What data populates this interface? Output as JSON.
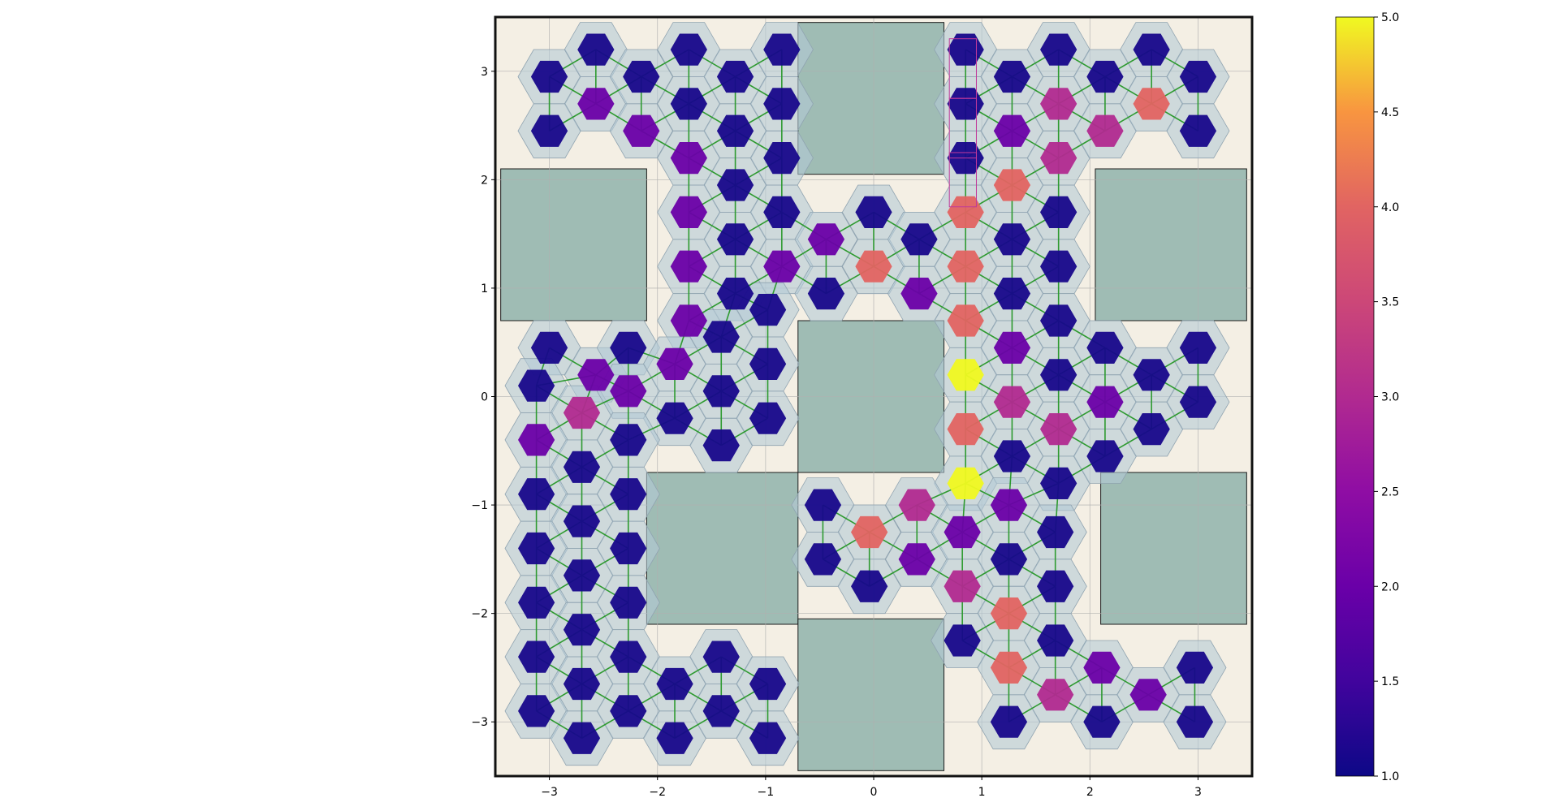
{
  "chart_data": {
    "type": "heatmap",
    "title": "",
    "xlabel": "",
    "ylabel": "",
    "xlim": [
      -3.5,
      3.5
    ],
    "ylim": [
      -3.5,
      3.5
    ],
    "grid": true,
    "x_ticks": [
      {
        "value": -3,
        "label": "−3"
      },
      {
        "value": -2,
        "label": "−2"
      },
      {
        "value": -1,
        "label": "−1"
      },
      {
        "value": 0,
        "label": "0"
      },
      {
        "value": 1,
        "label": "1"
      },
      {
        "value": 2,
        "label": "2"
      },
      {
        "value": 3,
        "label": "3"
      }
    ],
    "y_ticks": [
      {
        "value": 3,
        "label": "3"
      },
      {
        "value": 2,
        "label": "2"
      },
      {
        "value": 1,
        "label": "1"
      },
      {
        "value": 0,
        "label": "0"
      },
      {
        "value": -1,
        "label": "−1"
      },
      {
        "value": -2,
        "label": "−2"
      },
      {
        "value": -3,
        "label": "−3"
      }
    ],
    "colorbar": {
      "colormap": "plasma",
      "range": [
        1.0,
        5.0
      ],
      "ticks": [
        {
          "value": 1.0,
          "label": "1.0"
        },
        {
          "value": 1.5,
          "label": "1.5"
        },
        {
          "value": 2.0,
          "label": "2.0"
        },
        {
          "value": 2.5,
          "label": "2.5"
        },
        {
          "value": 3.0,
          "label": "3.0"
        },
        {
          "value": 3.5,
          "label": "3.5"
        },
        {
          "value": 4.0,
          "label": "4.0"
        },
        {
          "value": 4.5,
          "label": "4.5"
        },
        {
          "value": 5.0,
          "label": "5.0"
        }
      ]
    },
    "colors": {
      "blocked_region": "#9fbcb4",
      "background_region": "#f4efe4",
      "halo": "#b4c9d6",
      "edge": "#2e9a30",
      "highlight": "#c0399a"
    },
    "blocked_regions": [
      {
        "x": [
          -0.7,
          0.65
        ],
        "y": [
          2.05,
          3.45
        ]
      },
      {
        "x": [
          -3.45,
          -2.1
        ],
        "y": [
          0.7,
          2.1
        ]
      },
      {
        "x": [
          2.05,
          3.45
        ],
        "y": [
          0.7,
          2.1
        ]
      },
      {
        "x": [
          -0.7,
          0.65
        ],
        "y": [
          -0.7,
          0.7
        ]
      },
      {
        "x": [
          -2.1,
          -0.7
        ],
        "y": [
          -2.1,
          -0.7
        ]
      },
      {
        "x": [
          2.1,
          3.45
        ],
        "y": [
          -2.1,
          -0.7
        ]
      },
      {
        "x": [
          -0.7,
          0.65
        ],
        "y": [
          -3.45,
          -2.05
        ]
      }
    ],
    "highlight_rects": [
      {
        "x": [
          0.7,
          0.95
        ],
        "y": [
          2.75,
          3.3
        ]
      },
      {
        "x": [
          0.7,
          0.95
        ],
        "y": [
          2.2,
          2.75
        ]
      },
      {
        "x": [
          0.7,
          0.95
        ],
        "y": [
          1.75,
          2.25
        ]
      }
    ],
    "nodes": [
      {
        "x": -3.0,
        "y": 2.95,
        "v": 1.1
      },
      {
        "x": -2.57,
        "y": 3.2,
        "v": 1.1
      },
      {
        "x": -2.57,
        "y": 2.7,
        "v": 2.0
      },
      {
        "x": -3.0,
        "y": 2.45,
        "v": 1.1
      },
      {
        "x": -2.15,
        "y": 2.95,
        "v": 1.1
      },
      {
        "x": -2.15,
        "y": 2.45,
        "v": 2.0
      },
      {
        "x": -1.71,
        "y": 3.2,
        "v": 1.1
      },
      {
        "x": -1.71,
        "y": 2.7,
        "v": 1.1
      },
      {
        "x": -1.71,
        "y": 2.2,
        "v": 2.0
      },
      {
        "x": -1.28,
        "y": 2.95,
        "v": 1.1
      },
      {
        "x": -1.28,
        "y": 2.45,
        "v": 1.1
      },
      {
        "x": -1.28,
        "y": 1.95,
        "v": 1.1
      },
      {
        "x": -0.85,
        "y": 3.2,
        "v": 1.1
      },
      {
        "x": -0.85,
        "y": 2.7,
        "v": 1.1
      },
      {
        "x": -0.85,
        "y": 2.2,
        "v": 1.1
      },
      {
        "x": -1.71,
        "y": 1.7,
        "v": 2.0
      },
      {
        "x": -1.71,
        "y": 1.2,
        "v": 2.0
      },
      {
        "x": -1.71,
        "y": 0.7,
        "v": 2.0
      },
      {
        "x": -1.28,
        "y": 1.45,
        "v": 1.1
      },
      {
        "x": -1.28,
        "y": 0.95,
        "v": 1.1
      },
      {
        "x": -0.85,
        "y": 1.7,
        "v": 1.1
      },
      {
        "x": -0.85,
        "y": 1.2,
        "v": 2.0
      },
      {
        "x": -0.98,
        "y": 0.8,
        "v": 1.1
      },
      {
        "x": -0.44,
        "y": 1.45,
        "v": 2.0
      },
      {
        "x": -0.44,
        "y": 0.95,
        "v": 1.1
      },
      {
        "x": 0.0,
        "y": 1.7,
        "v": 1.1
      },
      {
        "x": 0.0,
        "y": 1.2,
        "v": 4.0
      },
      {
        "x": 0.42,
        "y": 1.45,
        "v": 1.1
      },
      {
        "x": 0.42,
        "y": 0.95,
        "v": 2.0
      },
      {
        "x": 0.85,
        "y": 3.2,
        "v": 1.1
      },
      {
        "x": 0.85,
        "y": 2.7,
        "v": 1.1
      },
      {
        "x": 0.85,
        "y": 2.2,
        "v": 1.1
      },
      {
        "x": 0.85,
        "y": 1.7,
        "v": 4.0
      },
      {
        "x": 0.85,
        "y": 1.2,
        "v": 4.0
      },
      {
        "x": 0.85,
        "y": 0.7,
        "v": 4.0
      },
      {
        "x": 0.85,
        "y": 0.2,
        "v": 5.0
      },
      {
        "x": 0.85,
        "y": -0.3,
        "v": 4.0
      },
      {
        "x": 0.85,
        "y": -0.8,
        "v": 5.0
      },
      {
        "x": 1.28,
        "y": 2.95,
        "v": 1.1
      },
      {
        "x": 1.28,
        "y": 2.45,
        "v": 2.0
      },
      {
        "x": 1.28,
        "y": 1.95,
        "v": 4.0
      },
      {
        "x": 1.28,
        "y": 1.45,
        "v": 1.1
      },
      {
        "x": 1.28,
        "y": 0.95,
        "v": 1.1
      },
      {
        "x": 1.28,
        "y": 0.45,
        "v": 2.0
      },
      {
        "x": 1.28,
        "y": -0.05,
        "v": 3.0
      },
      {
        "x": 1.28,
        "y": -0.55,
        "v": 1.1
      },
      {
        "x": 1.71,
        "y": 3.2,
        "v": 1.1
      },
      {
        "x": 1.71,
        "y": 2.7,
        "v": 3.0
      },
      {
        "x": 1.71,
        "y": 2.2,
        "v": 3.0
      },
      {
        "x": 1.71,
        "y": 1.7,
        "v": 1.1
      },
      {
        "x": 1.71,
        "y": 1.2,
        "v": 1.1
      },
      {
        "x": 1.71,
        "y": 0.7,
        "v": 1.1
      },
      {
        "x": 1.71,
        "y": 0.2,
        "v": 1.1
      },
      {
        "x": 1.71,
        "y": -0.3,
        "v": 3.0
      },
      {
        "x": 1.71,
        "y": -0.8,
        "v": 1.1
      },
      {
        "x": 2.14,
        "y": 2.95,
        "v": 1.1
      },
      {
        "x": 2.14,
        "y": 2.45,
        "v": 3.0
      },
      {
        "x": 2.14,
        "y": 0.45,
        "v": 1.1
      },
      {
        "x": 2.14,
        "y": -0.05,
        "v": 2.0
      },
      {
        "x": 2.14,
        "y": -0.55,
        "v": 1.1
      },
      {
        "x": 2.57,
        "y": 3.2,
        "v": 1.1
      },
      {
        "x": 2.57,
        "y": 2.7,
        "v": 4.0
      },
      {
        "x": 2.57,
        "y": 0.2,
        "v": 1.1
      },
      {
        "x": 2.57,
        "y": -0.3,
        "v": 1.1
      },
      {
        "x": 3.0,
        "y": 2.95,
        "v": 1.1
      },
      {
        "x": 3.0,
        "y": 2.45,
        "v": 1.1
      },
      {
        "x": 3.0,
        "y": 0.45,
        "v": 1.1
      },
      {
        "x": 3.0,
        "y": -0.05,
        "v": 1.1
      },
      {
        "x": -3.0,
        "y": 0.45,
        "v": 1.1
      },
      {
        "x": -3.12,
        "y": 0.1,
        "v": 1.1
      },
      {
        "x": -2.57,
        "y": 0.2,
        "v": 2.0
      },
      {
        "x": -2.7,
        "y": -0.15,
        "v": 3.0
      },
      {
        "x": -2.27,
        "y": 0.45,
        "v": 1.1
      },
      {
        "x": -2.27,
        "y": 0.05,
        "v": 2.0
      },
      {
        "x": -1.84,
        "y": 0.3,
        "v": 2.0
      },
      {
        "x": -1.84,
        "y": -0.2,
        "v": 1.1
      },
      {
        "x": -1.41,
        "y": 0.55,
        "v": 1.1
      },
      {
        "x": -1.41,
        "y": 0.05,
        "v": 1.1
      },
      {
        "x": -1.41,
        "y": -0.45,
        "v": 1.1
      },
      {
        "x": -0.98,
        "y": 0.3,
        "v": 1.1
      },
      {
        "x": -0.98,
        "y": -0.2,
        "v": 1.1
      },
      {
        "x": -3.12,
        "y": -0.4,
        "v": 2.0
      },
      {
        "x": -2.7,
        "y": -0.65,
        "v": 1.1
      },
      {
        "x": -2.27,
        "y": -0.4,
        "v": 1.1
      },
      {
        "x": -3.12,
        "y": -0.9,
        "v": 1.1
      },
      {
        "x": -2.7,
        "y": -1.15,
        "v": 1.1
      },
      {
        "x": -2.27,
        "y": -0.9,
        "v": 1.1
      },
      {
        "x": -3.12,
        "y": -1.4,
        "v": 1.1
      },
      {
        "x": -2.7,
        "y": -1.65,
        "v": 1.1
      },
      {
        "x": -2.27,
        "y": -1.4,
        "v": 1.1
      },
      {
        "x": -3.12,
        "y": -1.9,
        "v": 1.1
      },
      {
        "x": -2.7,
        "y": -2.15,
        "v": 1.1
      },
      {
        "x": -2.27,
        "y": -1.9,
        "v": 1.1
      },
      {
        "x": -3.12,
        "y": -2.4,
        "v": 1.1
      },
      {
        "x": -2.7,
        "y": -2.65,
        "v": 1.1
      },
      {
        "x": -2.27,
        "y": -2.4,
        "v": 1.1
      },
      {
        "x": -3.12,
        "y": -2.9,
        "v": 1.1
      },
      {
        "x": -2.7,
        "y": -3.15,
        "v": 1.1
      },
      {
        "x": -2.27,
        "y": -2.9,
        "v": 1.1
      },
      {
        "x": -1.84,
        "y": -2.65,
        "v": 1.1
      },
      {
        "x": -1.84,
        "y": -3.15,
        "v": 1.1
      },
      {
        "x": -1.41,
        "y": -2.4,
        "v": 1.1
      },
      {
        "x": -1.41,
        "y": -2.9,
        "v": 1.1
      },
      {
        "x": -0.98,
        "y": -2.65,
        "v": 1.1
      },
      {
        "x": -0.98,
        "y": -3.15,
        "v": 1.1
      },
      {
        "x": -0.47,
        "y": -1.0,
        "v": 1.1
      },
      {
        "x": -0.04,
        "y": -1.25,
        "v": 4.0
      },
      {
        "x": -0.47,
        "y": -1.5,
        "v": 1.1
      },
      {
        "x": -0.04,
        "y": -1.75,
        "v": 1.1
      },
      {
        "x": 0.4,
        "y": -1.0,
        "v": 3.0
      },
      {
        "x": 0.4,
        "y": -1.5,
        "v": 2.0
      },
      {
        "x": 0.82,
        "y": -1.25,
        "v": 2.0
      },
      {
        "x": 0.82,
        "y": -1.75,
        "v": 3.0
      },
      {
        "x": 1.25,
        "y": -1.0,
        "v": 2.0
      },
      {
        "x": 1.25,
        "y": -1.5,
        "v": 1.1
      },
      {
        "x": 1.25,
        "y": -2.0,
        "v": 4.0
      },
      {
        "x": 1.68,
        "y": -1.25,
        "v": 1.1
      },
      {
        "x": 1.68,
        "y": -1.75,
        "v": 1.1
      },
      {
        "x": 0.82,
        "y": -2.25,
        "v": 1.1
      },
      {
        "x": 1.25,
        "y": -2.5,
        "v": 4.0
      },
      {
        "x": 1.68,
        "y": -2.25,
        "v": 1.1
      },
      {
        "x": 1.68,
        "y": -2.75,
        "v": 3.0
      },
      {
        "x": 1.25,
        "y": -3.0,
        "v": 1.1
      },
      {
        "x": 2.11,
        "y": -2.5,
        "v": 2.0
      },
      {
        "x": 2.11,
        "y": -3.0,
        "v": 1.1
      },
      {
        "x": 2.54,
        "y": -2.75,
        "v": 2.0
      },
      {
        "x": 2.97,
        "y": -2.5,
        "v": 1.1
      },
      {
        "x": 2.97,
        "y": -3.0,
        "v": 1.1
      }
    ]
  }
}
